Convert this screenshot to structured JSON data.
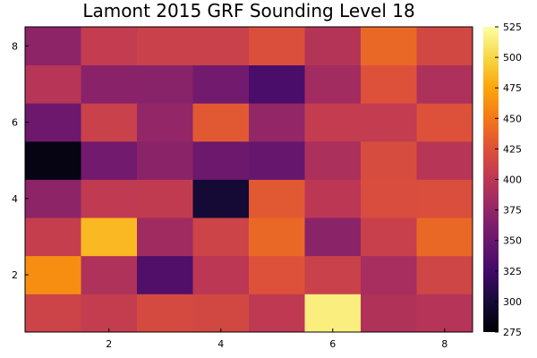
{
  "chart_data": {
    "type": "heatmap",
    "title": "Lamont 2015 GRF Sounding Level 18",
    "xlabel": "",
    "ylabel": "",
    "x": [
      1,
      2,
      3,
      4,
      5,
      6,
      7,
      8
    ],
    "y": [
      1,
      2,
      3,
      4,
      5,
      6,
      7,
      8
    ],
    "xlim": [
      0.5,
      8.5
    ],
    "ylim": [
      0.5,
      8.5
    ],
    "x_ticks": [
      2,
      4,
      6,
      8
    ],
    "y_ticks": [
      2,
      4,
      6,
      8
    ],
    "colormap": "inferno",
    "clim": [
      275,
      525
    ],
    "colorbar_ticks": [
      275,
      300,
      325,
      350,
      375,
      400,
      425,
      450,
      475,
      500,
      525
    ],
    "grid": false,
    "values": [
      [
        412,
        406,
        418,
        416,
        402,
        515,
        393,
        396
      ],
      [
        462,
        392,
        335,
        400,
        425,
        410,
        387,
        414
      ],
      [
        407,
        485,
        383,
        412,
        440,
        370,
        409,
        440
      ],
      [
        372,
        403,
        404,
        298,
        430,
        400,
        421,
        422
      ],
      [
        282,
        355,
        370,
        352,
        348,
        390,
        420,
        397
      ],
      [
        352,
        410,
        375,
        430,
        375,
        405,
        405,
        425
      ],
      [
        397,
        369,
        368,
        355,
        330,
        384,
        425,
        391
      ],
      [
        372,
        405,
        410,
        410,
        423,
        395,
        440,
        416
      ]
    ]
  }
}
